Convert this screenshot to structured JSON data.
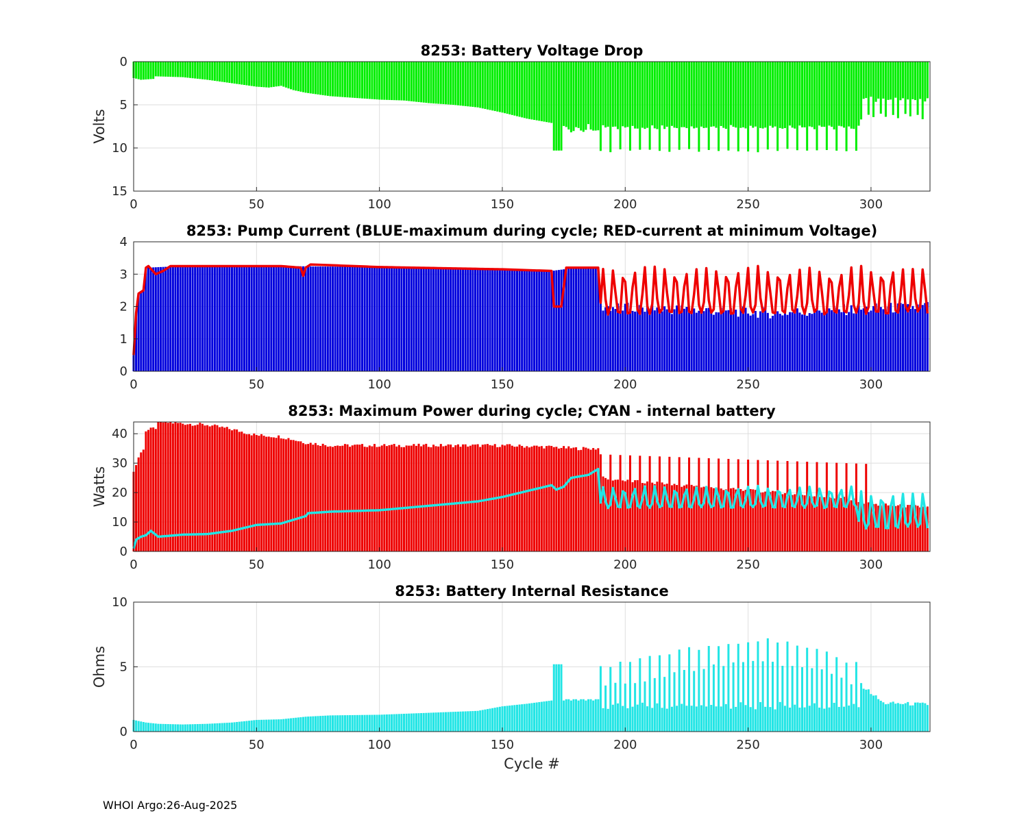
{
  "footer": "WHOI Argo:26-Aug-2025",
  "colors": {
    "green": "#00ee00",
    "blue": "#0000dd",
    "red": "#ee0000",
    "cyan": "#22e5e5"
  },
  "chart_data": [
    {
      "type": "bar",
      "title": "8253: Battery Voltage Drop",
      "ylabel": "Volts",
      "xlabel": "",
      "xlim": [
        0,
        324
      ],
      "ylim": [
        0,
        15
      ],
      "y_reversed": true,
      "xticks": [
        0,
        50,
        100,
        150,
        200,
        250,
        300
      ],
      "yticks": [
        0,
        5,
        10,
        15
      ],
      "grid": true,
      "series": [
        {
          "name": "Voltage drop",
          "color": "green",
          "anchors": [
            [
              0,
              1.9
            ],
            [
              3,
              2.1
            ],
            [
              8,
              2.0
            ],
            [
              9,
              1.7
            ],
            [
              20,
              1.8
            ],
            [
              30,
              2.1
            ],
            [
              40,
              2.5
            ],
            [
              50,
              2.9
            ],
            [
              55,
              3.0
            ],
            [
              60,
              2.8
            ],
            [
              65,
              3.3
            ],
            [
              70,
              3.6
            ],
            [
              80,
              4.0
            ],
            [
              90,
              4.2
            ],
            [
              100,
              4.4
            ],
            [
              110,
              4.5
            ],
            [
              120,
              4.8
            ],
            [
              130,
              5.0
            ],
            [
              140,
              5.3
            ],
            [
              150,
              5.9
            ],
            [
              160,
              6.6
            ],
            [
              170,
              7.1
            ]
          ],
          "events": [
            {
              "from": 171,
              "to": 174,
              "value": 10.3
            },
            {
              "from": 175,
              "to": 189,
              "pattern": [
                7.4,
                7.7,
                7.9,
                8.0,
                8.1
              ]
            },
            {
              "from": 190,
              "to": 295,
              "pattern": [
                10.3,
                7.5,
                7.6,
                7.7
              ],
              "after_pattern": "alternating"
            },
            {
              "from": 296,
              "to": 323,
              "pattern": [
                6.5,
                4.5,
                4.3,
                6.0,
                4.2
              ],
              "after_pattern": "alternating"
            }
          ]
        }
      ]
    },
    {
      "type": "bar+line",
      "title": "8253: Pump Current (BLUE-maximum during cycle; RED-current at minimum Voltage)",
      "ylabel": "",
      "xlabel": "",
      "xlim": [
        0,
        324
      ],
      "ylim": [
        0,
        4
      ],
      "xticks": [
        0,
        50,
        100,
        150,
        200,
        250,
        300
      ],
      "yticks": [
        0,
        1,
        2,
        3,
        4
      ],
      "grid": true,
      "series": [
        {
          "name": "maximum during cycle",
          "color": "blue",
          "kind": "bar",
          "anchors": [
            [
              0,
              0.5
            ],
            [
              1,
              1.8
            ],
            [
              2,
              2.4
            ],
            [
              4,
              2.5
            ],
            [
              5,
              3.2
            ],
            [
              20,
              3.25
            ],
            [
              60,
              3.25
            ],
            [
              100,
              3.22
            ],
            [
              150,
              3.15
            ],
            [
              170,
              3.1
            ],
            [
              180,
              3.2
            ],
            [
              189,
              3.2
            ],
            [
              190,
              2.0
            ],
            [
              200,
              1.95
            ],
            [
              230,
              1.9
            ],
            [
              260,
              1.8
            ],
            [
              290,
              1.9
            ],
            [
              323,
              2.0
            ]
          ]
        },
        {
          "name": "current at minimum Voltage",
          "color": "red",
          "kind": "line",
          "anchors": [
            [
              0,
              0.5
            ],
            [
              1,
              1.8
            ],
            [
              2,
              2.4
            ],
            [
              4,
              2.5
            ],
            [
              5,
              3.2
            ],
            [
              6,
              3.25
            ],
            [
              9,
              3.0
            ],
            [
              12,
              3.1
            ],
            [
              15,
              3.25
            ],
            [
              60,
              3.25
            ],
            [
              68,
              3.2
            ],
            [
              69,
              2.95
            ],
            [
              70,
              3.2
            ],
            [
              72,
              3.3
            ],
            [
              100,
              3.22
            ],
            [
              150,
              3.15
            ],
            [
              170,
              3.1
            ],
            [
              171,
              2.0
            ],
            [
              174,
              2.0
            ],
            [
              176,
              3.2
            ],
            [
              189,
              3.2
            ],
            [
              190,
              2.0
            ]
          ],
          "oscillation": {
            "from": 190,
            "to": 323,
            "period": 4.2,
            "peak": 3.2,
            "trough": 1.8
          }
        }
      ]
    },
    {
      "type": "bar+line",
      "title": "8253: Maximum Power during cycle; CYAN - internal battery",
      "ylabel": "Watts",
      "xlabel": "",
      "xlim": [
        0,
        324
      ],
      "ylim": [
        0,
        44
      ],
      "xticks": [
        0,
        50,
        100,
        150,
        200,
        250,
        300
      ],
      "yticks": [
        0,
        10,
        20,
        30,
        40
      ],
      "grid": true,
      "series": [
        {
          "name": "Maximum power",
          "color": "red",
          "kind": "bar",
          "anchors": [
            [
              0,
              27
            ],
            [
              2,
              32
            ],
            [
              4,
              35
            ],
            [
              5,
              41
            ],
            [
              9,
              42
            ],
            [
              10,
              44
            ],
            [
              30,
              43
            ],
            [
              40,
              41.5
            ],
            [
              50,
              39.5
            ],
            [
              60,
              39
            ],
            [
              70,
              37
            ],
            [
              80,
              36
            ],
            [
              100,
              36
            ],
            [
              150,
              36
            ],
            [
              170,
              35.5
            ],
            [
              180,
              35
            ],
            [
              189,
              35
            ],
            [
              190,
              25
            ],
            [
              200,
              24
            ],
            [
              230,
              22
            ],
            [
              260,
              20
            ],
            [
              290,
              18
            ],
            [
              300,
              16
            ],
            [
              323,
              15
            ]
          ],
          "spikes": {
            "from": 190,
            "to": 300,
            "every": 4,
            "value": 33
          }
        },
        {
          "name": "internal battery",
          "color": "cyan",
          "kind": "line",
          "anchors": [
            [
              0,
              1
            ],
            [
              1,
              4
            ],
            [
              3,
              5
            ],
            [
              5,
              5.5
            ],
            [
              7,
              7
            ],
            [
              10,
              5
            ],
            [
              20,
              5.7
            ],
            [
              30,
              5.9
            ],
            [
              40,
              7
            ],
            [
              45,
              8
            ],
            [
              50,
              9
            ],
            [
              60,
              9.5
            ],
            [
              70,
              12
            ],
            [
              71,
              13
            ],
            [
              80,
              13.5
            ],
            [
              100,
              14
            ],
            [
              120,
              15.5
            ],
            [
              140,
              17
            ],
            [
              150,
              18.5
            ],
            [
              160,
              20.5
            ],
            [
              170,
              22.5
            ],
            [
              172,
              21
            ],
            [
              175,
              22
            ],
            [
              178,
              25
            ],
            [
              185,
              26
            ],
            [
              189,
              28
            ],
            [
              190,
              15
            ]
          ],
          "oscillation": {
            "from": 190,
            "to": 323,
            "period": 4.2,
            "peak": 22,
            "trough": 15,
            "late_peak": 20,
            "late_trough": 8
          }
        }
      ]
    },
    {
      "type": "bar",
      "title": "8253: Battery Internal Resistance",
      "ylabel": "Ohms",
      "xlabel": "Cycle #",
      "xlim": [
        0,
        324
      ],
      "ylim": [
        0,
        10
      ],
      "xticks": [
        0,
        50,
        100,
        150,
        200,
        250,
        300
      ],
      "yticks": [
        0,
        5,
        10
      ],
      "grid": true,
      "series": [
        {
          "name": "Internal resistance",
          "color": "cyan",
          "anchors": [
            [
              0,
              0.9
            ],
            [
              5,
              0.7
            ],
            [
              10,
              0.6
            ],
            [
              20,
              0.55
            ],
            [
              30,
              0.6
            ],
            [
              40,
              0.7
            ],
            [
              50,
              0.9
            ],
            [
              60,
              0.95
            ],
            [
              70,
              1.15
            ],
            [
              80,
              1.25
            ],
            [
              100,
              1.3
            ],
            [
              120,
              1.45
            ],
            [
              140,
              1.6
            ],
            [
              150,
              1.95
            ],
            [
              160,
              2.15
            ],
            [
              170,
              2.4
            ]
          ],
          "events": [
            {
              "from": 171,
              "to": 174,
              "value": 5.2
            },
            {
              "from": 175,
              "to": 189,
              "pattern": [
                2.4,
                2.5,
                2.5
              ]
            },
            {
              "from": 190,
              "to": 295,
              "peaks": [
                [
                  190,
                  5.3
                ],
                [
                  200,
                  5.5
                ],
                [
                  220,
                  6.4
                ],
                [
                  240,
                  6.9
                ],
                [
                  250,
                  7.2
                ],
                [
                  255,
                  7.4
                ],
                [
                  270,
                  6.8
                ],
                [
                  280,
                  6.5
                ],
                [
                  290,
                  5.6
                ]
              ],
              "low": 1.7
            },
            {
              "from": 296,
              "to": 323,
              "anchors": [
                [
                  296,
                  3.6
                ],
                [
                  300,
                  3.0
                ],
                [
                  305,
                  2.2
                ],
                [
                  323,
                  2.1
                ]
              ]
            }
          ]
        }
      ]
    }
  ]
}
